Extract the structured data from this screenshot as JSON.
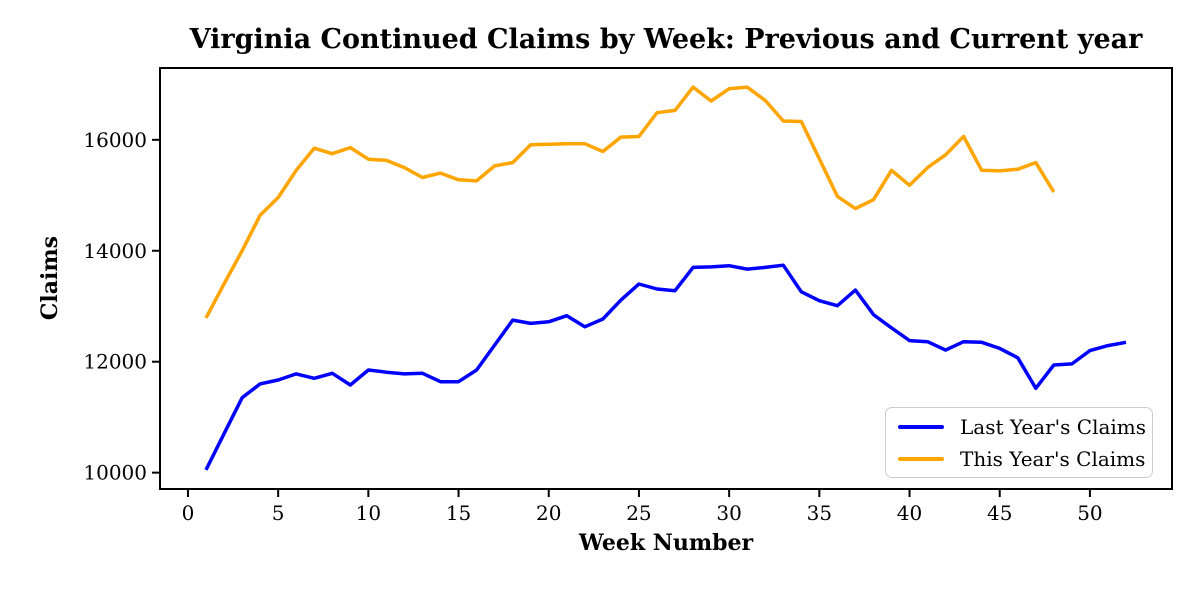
{
  "figure": {
    "background": "#ffffff",
    "text_color": "#000000"
  },
  "chart_data": {
    "type": "line",
    "title": "Virginia Continued Claims by Week: Previous and Current year",
    "xlabel": "Week Number",
    "ylabel": "Claims",
    "xlim": [
      -1.55,
      54.55
    ],
    "ylim": [
      9705,
      17295
    ],
    "x_ticks": [
      0,
      5,
      10,
      15,
      20,
      25,
      30,
      35,
      40,
      45,
      50
    ],
    "y_ticks": [
      10000,
      12000,
      14000,
      16000
    ],
    "grid": false,
    "legend_position": "lower right",
    "series": [
      {
        "name": "Last Year's Claims",
        "color": "#0000ff",
        "x": [
          1,
          2,
          3,
          4,
          5,
          6,
          7,
          8,
          9,
          10,
          11,
          12,
          13,
          14,
          15,
          16,
          17,
          18,
          19,
          20,
          21,
          22,
          23,
          24,
          25,
          26,
          27,
          28,
          29,
          30,
          31,
          32,
          33,
          34,
          35,
          36,
          37,
          38,
          39,
          40,
          41,
          42,
          43,
          44,
          45,
          46,
          47,
          48,
          49,
          50,
          51,
          52
        ],
        "values": [
          10050,
          10700,
          11350,
          11600,
          11670,
          11780,
          11700,
          11790,
          11580,
          11850,
          11810,
          11780,
          11790,
          11640,
          11640,
          11850,
          12300,
          12750,
          12690,
          12720,
          12830,
          12630,
          12770,
          13110,
          13400,
          13310,
          13280,
          13700,
          13710,
          13730,
          13670,
          13700,
          13740,
          13260,
          13100,
          13010,
          13290,
          12850,
          12610,
          12380,
          12360,
          12210,
          12360,
          12350,
          12240,
          12070,
          11520,
          11940,
          11960,
          12200,
          12290,
          12350
        ]
      },
      {
        "name": "This Year's Claims",
        "color": "#ffa500",
        "x": [
          1,
          2,
          3,
          4,
          5,
          6,
          7,
          8,
          9,
          10,
          11,
          12,
          13,
          14,
          15,
          16,
          17,
          18,
          19,
          20,
          21,
          22,
          23,
          24,
          25,
          26,
          27,
          28,
          29,
          30,
          31,
          32,
          33,
          34,
          35,
          36,
          37,
          38,
          39,
          40,
          41,
          42,
          43,
          44,
          45,
          46,
          47,
          48
        ],
        "values": [
          12790,
          13400,
          14000,
          14640,
          14960,
          15450,
          15850,
          15750,
          15860,
          15650,
          15630,
          15500,
          15320,
          15400,
          15280,
          15260,
          15530,
          15590,
          15910,
          15920,
          15930,
          15930,
          15790,
          16050,
          16060,
          16490,
          16530,
          16950,
          16700,
          16920,
          16950,
          16710,
          16340,
          16330,
          15660,
          14980,
          14760,
          14920,
          15450,
          15180,
          15500,
          15730,
          16060,
          15450,
          15440,
          15470,
          15590,
          15060
        ]
      }
    ]
  },
  "legend": {
    "entries": [
      {
        "label": "Last Year's Claims",
        "color": "#0000ff"
      },
      {
        "label": "This Year's Claims",
        "color": "#ffa500"
      }
    ]
  }
}
